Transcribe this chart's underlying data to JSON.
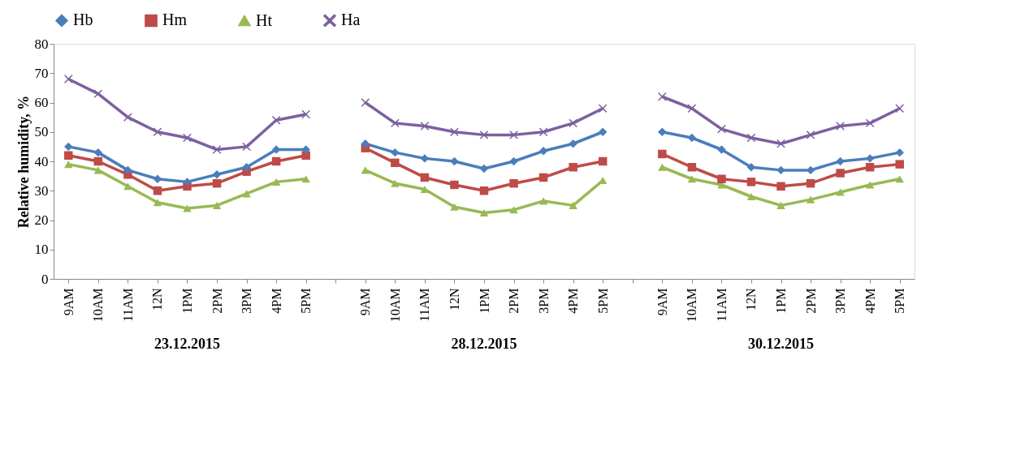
{
  "chart_data": {
    "type": "line",
    "ylabel": "Relative humidity, %",
    "categories": [
      "9AM",
      "10AM",
      "11AM",
      "12N",
      "1PM",
      "2PM",
      "3PM",
      "4PM",
      "5PM",
      null,
      "9AM",
      "10AM",
      "11AM",
      "12N",
      "1PM",
      "2PM",
      "3PM",
      "4PM",
      "5PM",
      null,
      "9AM",
      "10AM",
      "11AM",
      "12N",
      "1PM",
      "2PM",
      "3PM",
      "4PM",
      "5PM"
    ],
    "series": [
      {
        "name": "Hb",
        "color": "#4a7ebb",
        "marker": "diamond",
        "values": [
          45,
          43,
          37,
          34,
          33,
          35.5,
          38,
          44,
          44,
          null,
          46,
          43,
          41,
          40,
          37.5,
          40,
          43.5,
          46,
          50,
          null,
          50,
          48,
          44,
          38,
          37,
          37,
          40,
          41,
          43
        ]
      },
      {
        "name": "Hm",
        "color": "#be4b48",
        "marker": "square",
        "values": [
          42,
          40,
          35.5,
          30,
          31.5,
          32.5,
          36.5,
          40,
          42,
          null,
          44.5,
          39.5,
          34.5,
          32,
          30,
          32.5,
          34.5,
          38,
          40,
          null,
          42.5,
          38,
          34,
          33,
          31.5,
          32.5,
          36,
          38,
          39
        ]
      },
      {
        "name": "Ht",
        "color": "#98b954",
        "marker": "triangle",
        "values": [
          39,
          37,
          31.5,
          26,
          24,
          25,
          29,
          33,
          34,
          null,
          37,
          32.5,
          30.5,
          24.5,
          22.5,
          23.5,
          26.5,
          25,
          33.5,
          null,
          38,
          34,
          32,
          28,
          25,
          27,
          29.5,
          32,
          34
        ]
      },
      {
        "name": "Ha",
        "color": "#7d60a0",
        "marker": "cross",
        "values": [
          68,
          63,
          55,
          50,
          48,
          44,
          45,
          54,
          56,
          null,
          60,
          53,
          52,
          50,
          49,
          49,
          50,
          53,
          58,
          null,
          62,
          58,
          51,
          48,
          46,
          49,
          52,
          53,
          58
        ]
      }
    ],
    "ylim": [
      0,
      80
    ],
    "yticks": [
      0,
      10,
      20,
      30,
      40,
      50,
      60,
      70,
      80
    ],
    "grid": false,
    "legend": "top",
    "line_style": "solid",
    "annotations": [
      "23.12.2015",
      "28.12.2015",
      "30.12.2015"
    ]
  }
}
